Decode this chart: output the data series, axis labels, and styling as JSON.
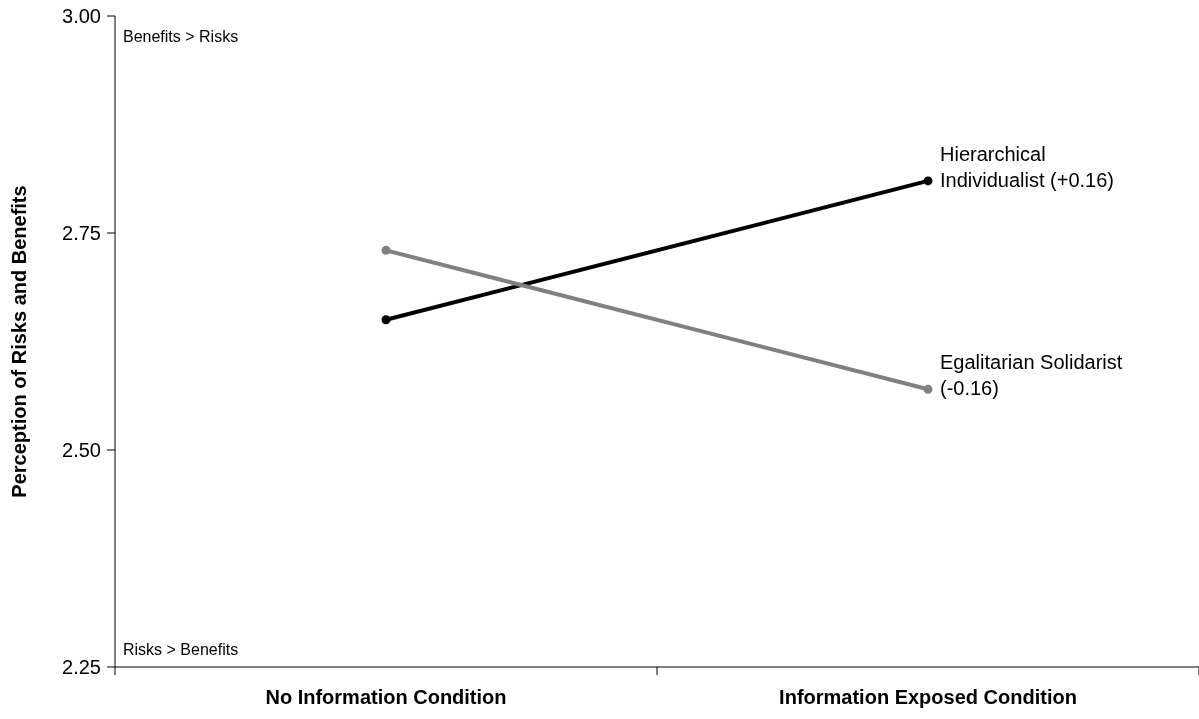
{
  "chart_data": {
    "type": "line",
    "ylabel": "Perception of Risks and Benefits",
    "categories": [
      "No Information Condition",
      "Information Exposed Condition"
    ],
    "series": [
      {
        "name": "Hierarchical Individualist (+0.16)",
        "color": "#000000",
        "values": [
          2.65,
          2.81
        ]
      },
      {
        "name": "Egalitarian Solidarist (-0.16)",
        "color": "#808080",
        "values": [
          2.73,
          2.57
        ]
      }
    ],
    "ylim": [
      2.25,
      3.0
    ],
    "yticks": [
      {
        "value": 2.25,
        "label": "2.25"
      },
      {
        "value": 2.5,
        "label": "2.50"
      },
      {
        "value": 2.75,
        "label": "2.75"
      },
      {
        "value": 3.0,
        "label": "3.00"
      }
    ],
    "annotations": [
      "Benefits > Risks",
      "Risks > Benefits"
    ],
    "marker": "circle",
    "line_style": "solid",
    "grid": false
  }
}
